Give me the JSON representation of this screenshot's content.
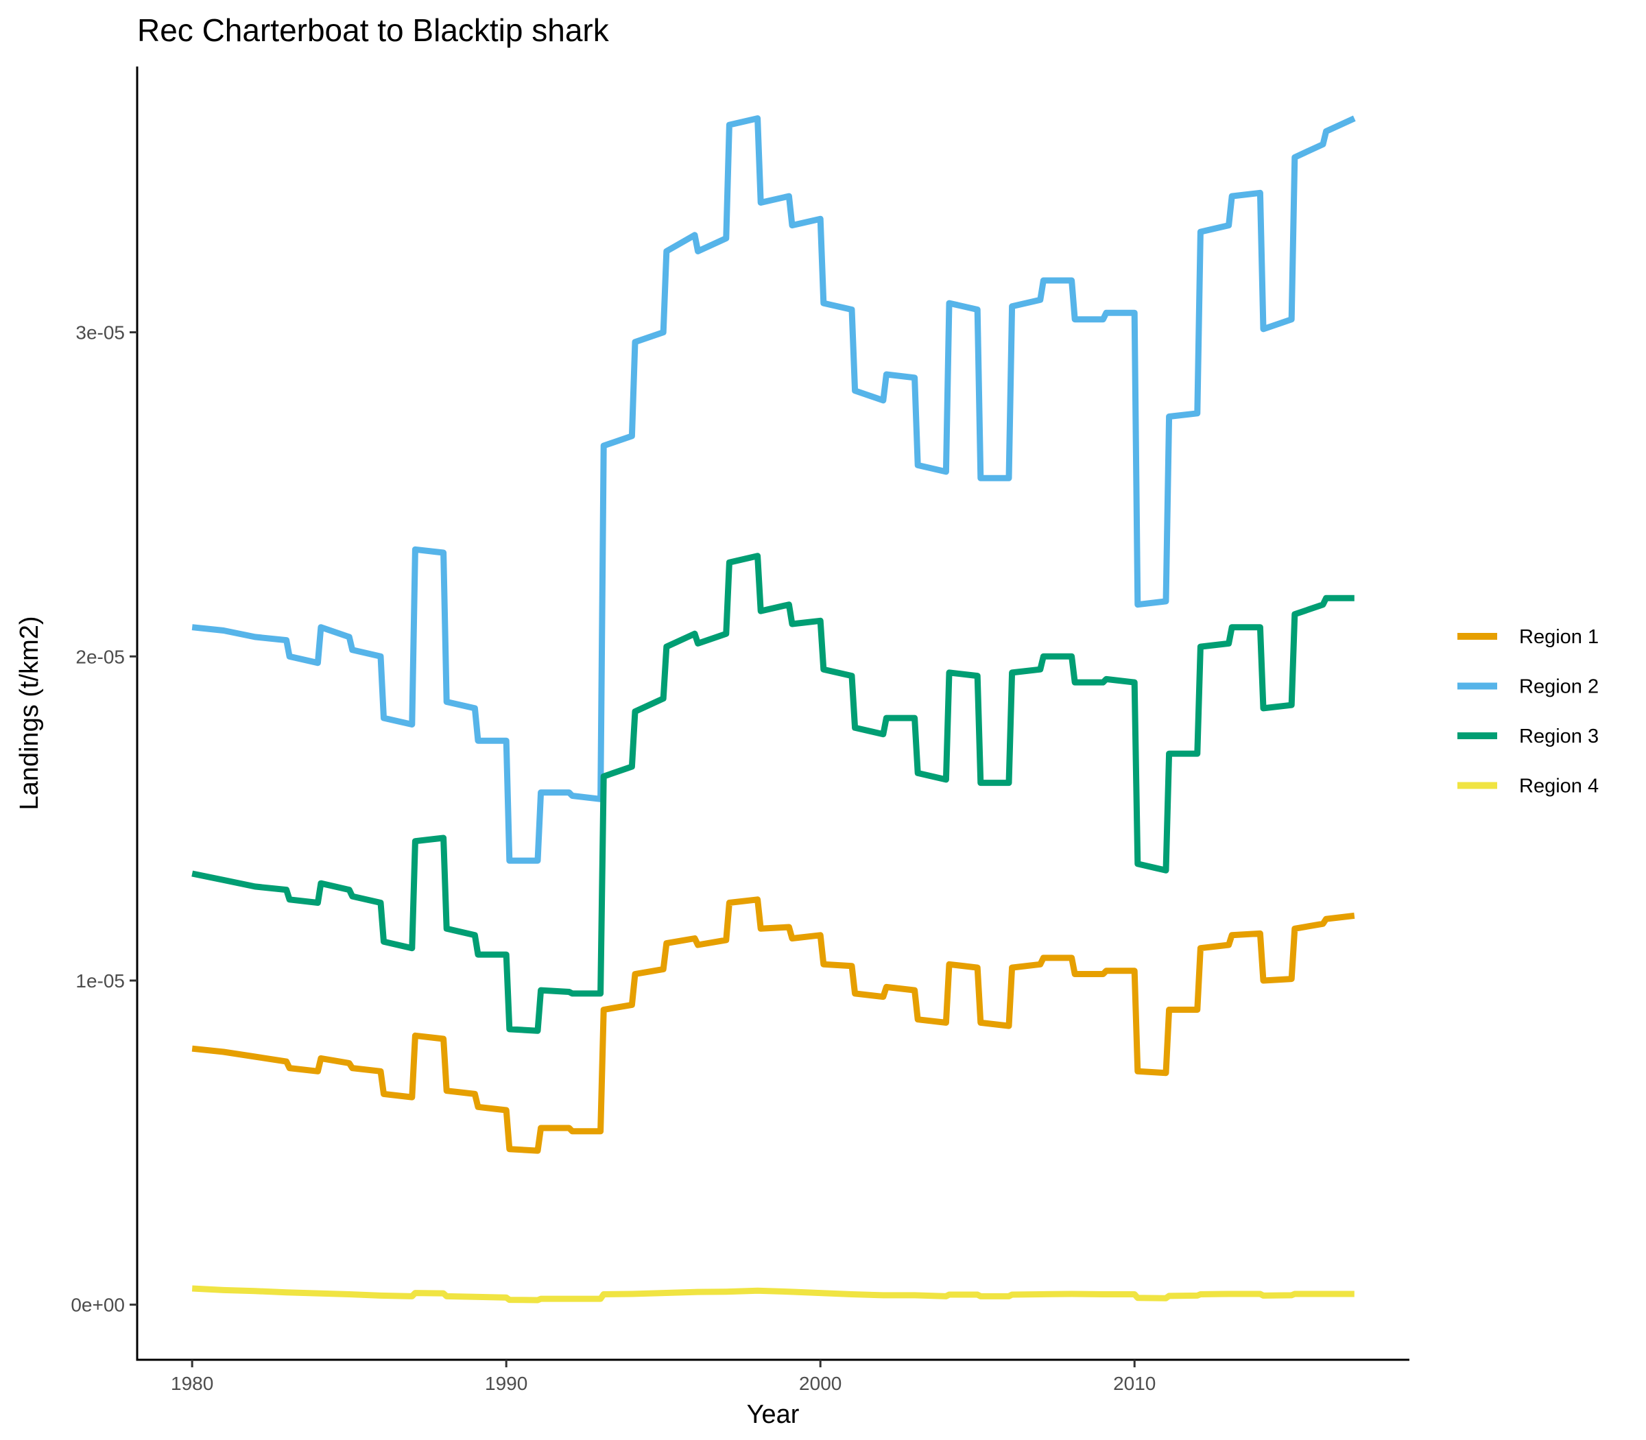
{
  "chart_data": {
    "type": "line",
    "title": "Rec Charterboat to Blacktip shark",
    "xlabel": "Year",
    "ylabel": "Landings (t/km2)",
    "xlim": [
      1978.25,
      2018.75
    ],
    "ylim": [
      -1.7e-06,
      3.82e-05
    ],
    "x_ticks": [
      1980,
      1990,
      2000,
      2010
    ],
    "x_tick_labels": [
      "1980",
      "1990",
      "2000",
      "2010"
    ],
    "y_ticks": [
      0,
      1e-05,
      2e-05,
      3e-05
    ],
    "y_tick_labels": [
      "0e+00",
      "1e-05",
      "2e-05",
      "3e-05"
    ],
    "grid": false,
    "legend_position": "right",
    "series": [
      {
        "name": "Region 1",
        "color": "#E69F00",
        "points": [
          [
            1980.0,
            7.9e-06
          ],
          [
            1981.0,
            7.8e-06
          ],
          [
            1982.0,
            7.65e-06
          ],
          [
            1983.0,
            7.5e-06
          ],
          [
            1983.1,
            7.3e-06
          ],
          [
            1984.0,
            7.2e-06
          ],
          [
            1984.1,
            7.6e-06
          ],
          [
            1985.0,
            7.45e-06
          ],
          [
            1985.1,
            7.3e-06
          ],
          [
            1986.0,
            7.2e-06
          ],
          [
            1986.1,
            6.5e-06
          ],
          [
            1987.0,
            6.4e-06
          ],
          [
            1987.1,
            8.3e-06
          ],
          [
            1988.0,
            8.2e-06
          ],
          [
            1988.1,
            6.6e-06
          ],
          [
            1989.0,
            6.5e-06
          ],
          [
            1989.1,
            6.1e-06
          ],
          [
            1990.0,
            6e-06
          ],
          [
            1990.1,
            4.8e-06
          ],
          [
            1991.0,
            4.75e-06
          ],
          [
            1991.1,
            5.45e-06
          ],
          [
            1992.0,
            5.45e-06
          ],
          [
            1992.1,
            5.35e-06
          ],
          [
            1993.0,
            5.35e-06
          ],
          [
            1993.1,
            9.1e-06
          ],
          [
            1994.0,
            9.25e-06
          ],
          [
            1994.1,
            1.02e-05
          ],
          [
            1995.0,
            1.035e-05
          ],
          [
            1995.1,
            1.115e-05
          ],
          [
            1996.0,
            1.13e-05
          ],
          [
            1996.1,
            1.11e-05
          ],
          [
            1997.0,
            1.125e-05
          ],
          [
            1997.1,
            1.24e-05
          ],
          [
            1998.0,
            1.25e-05
          ],
          [
            1998.1,
            1.16e-05
          ],
          [
            1999.0,
            1.165e-05
          ],
          [
            1999.1,
            1.13e-05
          ],
          [
            2000.0,
            1.14e-05
          ],
          [
            2000.1,
            1.05e-05
          ],
          [
            2001.0,
            1.045e-05
          ],
          [
            2001.1,
            9.6e-06
          ],
          [
            2002.0,
            9.5e-06
          ],
          [
            2002.1,
            9.8e-06
          ],
          [
            2003.0,
            9.7e-06
          ],
          [
            2003.1,
            8.8e-06
          ],
          [
            2004.0,
            8.7e-06
          ],
          [
            2004.1,
            1.05e-05
          ],
          [
            2005.0,
            1.04e-05
          ],
          [
            2005.1,
            8.7e-06
          ],
          [
            2006.0,
            8.6e-06
          ],
          [
            2006.1,
            1.04e-05
          ],
          [
            2007.0,
            1.05e-05
          ],
          [
            2007.1,
            1.07e-05
          ],
          [
            2008.0,
            1.07e-05
          ],
          [
            2008.1,
            1.02e-05
          ],
          [
            2009.0,
            1.02e-05
          ],
          [
            2009.1,
            1.03e-05
          ],
          [
            2010.0,
            1.03e-05
          ],
          [
            2010.1,
            7.2e-06
          ],
          [
            2011.0,
            7.15e-06
          ],
          [
            2011.1,
            9.1e-06
          ],
          [
            2012.0,
            9.1e-06
          ],
          [
            2012.1,
            1.1e-05
          ],
          [
            2013.0,
            1.11e-05
          ],
          [
            2013.1,
            1.14e-05
          ],
          [
            2014.0,
            1.145e-05
          ],
          [
            2014.1,
            1e-05
          ],
          [
            2015.0,
            1.005e-05
          ],
          [
            2015.1,
            1.16e-05
          ],
          [
            2016.0,
            1.175e-05
          ],
          [
            2016.1,
            1.19e-05
          ],
          [
            2017.0,
            1.2e-05
          ]
        ]
      },
      {
        "name": "Region 2",
        "color": "#56B4E9",
        "points": [
          [
            1980.0,
            2.09e-05
          ],
          [
            1981.0,
            2.08e-05
          ],
          [
            1982.0,
            2.06e-05
          ],
          [
            1983.0,
            2.05e-05
          ],
          [
            1983.1,
            2e-05
          ],
          [
            1984.0,
            1.98e-05
          ],
          [
            1984.1,
            2.09e-05
          ],
          [
            1985.0,
            2.06e-05
          ],
          [
            1985.1,
            2.02e-05
          ],
          [
            1986.0,
            2e-05
          ],
          [
            1986.1,
            1.81e-05
          ],
          [
            1987.0,
            1.79e-05
          ],
          [
            1987.1,
            2.33e-05
          ],
          [
            1988.0,
            2.32e-05
          ],
          [
            1988.1,
            1.86e-05
          ],
          [
            1989.0,
            1.84e-05
          ],
          [
            1989.1,
            1.74e-05
          ],
          [
            1990.0,
            1.74e-05
          ],
          [
            1990.1,
            1.37e-05
          ],
          [
            1991.0,
            1.37e-05
          ],
          [
            1991.1,
            1.58e-05
          ],
          [
            1992.0,
            1.58e-05
          ],
          [
            1992.1,
            1.57e-05
          ],
          [
            1993.0,
            1.56e-05
          ],
          [
            1993.1,
            2.65e-05
          ],
          [
            1994.0,
            2.68e-05
          ],
          [
            1994.1,
            2.97e-05
          ],
          [
            1995.0,
            3e-05
          ],
          [
            1995.1,
            3.25e-05
          ],
          [
            1996.0,
            3.3e-05
          ],
          [
            1996.1,
            3.25e-05
          ],
          [
            1997.0,
            3.29e-05
          ],
          [
            1997.1,
            3.64e-05
          ],
          [
            1998.0,
            3.66e-05
          ],
          [
            1998.1,
            3.4e-05
          ],
          [
            1999.0,
            3.42e-05
          ],
          [
            1999.1,
            3.33e-05
          ],
          [
            2000.0,
            3.35e-05
          ],
          [
            2000.1,
            3.09e-05
          ],
          [
            2001.0,
            3.07e-05
          ],
          [
            2001.1,
            2.82e-05
          ],
          [
            2002.0,
            2.79e-05
          ],
          [
            2002.1,
            2.87e-05
          ],
          [
            2003.0,
            2.86e-05
          ],
          [
            2003.1,
            2.59e-05
          ],
          [
            2004.0,
            2.57e-05
          ],
          [
            2004.1,
            3.09e-05
          ],
          [
            2005.0,
            3.07e-05
          ],
          [
            2005.1,
            2.55e-05
          ],
          [
            2006.0,
            2.55e-05
          ],
          [
            2006.1,
            3.08e-05
          ],
          [
            2007.0,
            3.1e-05
          ],
          [
            2007.1,
            3.16e-05
          ],
          [
            2008.0,
            3.16e-05
          ],
          [
            2008.1,
            3.04e-05
          ],
          [
            2009.0,
            3.04e-05
          ],
          [
            2009.1,
            3.06e-05
          ],
          [
            2010.0,
            3.06e-05
          ],
          [
            2010.1,
            2.16e-05
          ],
          [
            2011.0,
            2.17e-05
          ],
          [
            2011.1,
            2.74e-05
          ],
          [
            2012.0,
            2.75e-05
          ],
          [
            2012.1,
            3.31e-05
          ],
          [
            2013.0,
            3.33e-05
          ],
          [
            2013.1,
            3.42e-05
          ],
          [
            2014.0,
            3.43e-05
          ],
          [
            2014.1,
            3.01e-05
          ],
          [
            2015.0,
            3.04e-05
          ],
          [
            2015.1,
            3.54e-05
          ],
          [
            2016.0,
            3.58e-05
          ],
          [
            2016.1,
            3.62e-05
          ],
          [
            2017.0,
            3.66e-05
          ]
        ]
      },
      {
        "name": "Region 3",
        "color": "#009E73",
        "points": [
          [
            1980.0,
            1.33e-05
          ],
          [
            1981.0,
            1.31e-05
          ],
          [
            1982.0,
            1.29e-05
          ],
          [
            1983.0,
            1.28e-05
          ],
          [
            1983.1,
            1.25e-05
          ],
          [
            1984.0,
            1.24e-05
          ],
          [
            1984.1,
            1.3e-05
          ],
          [
            1985.0,
            1.28e-05
          ],
          [
            1985.1,
            1.26e-05
          ],
          [
            1986.0,
            1.24e-05
          ],
          [
            1986.1,
            1.12e-05
          ],
          [
            1987.0,
            1.1e-05
          ],
          [
            1987.1,
            1.43e-05
          ],
          [
            1988.0,
            1.44e-05
          ],
          [
            1988.1,
            1.16e-05
          ],
          [
            1989.0,
            1.14e-05
          ],
          [
            1989.1,
            1.08e-05
          ],
          [
            1990.0,
            1.08e-05
          ],
          [
            1990.1,
            8.5e-06
          ],
          [
            1991.0,
            8.45e-06
          ],
          [
            1991.1,
            9.7e-06
          ],
          [
            1992.0,
            9.65e-06
          ],
          [
            1992.1,
            9.6e-06
          ],
          [
            1993.0,
            9.6e-06
          ],
          [
            1993.1,
            1.63e-05
          ],
          [
            1994.0,
            1.66e-05
          ],
          [
            1994.1,
            1.83e-05
          ],
          [
            1995.0,
            1.87e-05
          ],
          [
            1995.1,
            2.03e-05
          ],
          [
            1996.0,
            2.07e-05
          ],
          [
            1996.1,
            2.04e-05
          ],
          [
            1997.0,
            2.07e-05
          ],
          [
            1997.1,
            2.29e-05
          ],
          [
            1998.0,
            2.31e-05
          ],
          [
            1998.1,
            2.14e-05
          ],
          [
            1999.0,
            2.16e-05
          ],
          [
            1999.1,
            2.1e-05
          ],
          [
            2000.0,
            2.11e-05
          ],
          [
            2000.1,
            1.96e-05
          ],
          [
            2001.0,
            1.94e-05
          ],
          [
            2001.1,
            1.78e-05
          ],
          [
            2002.0,
            1.76e-05
          ],
          [
            2002.1,
            1.81e-05
          ],
          [
            2003.0,
            1.81e-05
          ],
          [
            2003.1,
            1.64e-05
          ],
          [
            2004.0,
            1.62e-05
          ],
          [
            2004.1,
            1.95e-05
          ],
          [
            2005.0,
            1.94e-05
          ],
          [
            2005.1,
            1.61e-05
          ],
          [
            2006.0,
            1.61e-05
          ],
          [
            2006.1,
            1.95e-05
          ],
          [
            2007.0,
            1.96e-05
          ],
          [
            2007.1,
            2e-05
          ],
          [
            2008.0,
            2e-05
          ],
          [
            2008.1,
            1.92e-05
          ],
          [
            2009.0,
            1.92e-05
          ],
          [
            2009.1,
            1.93e-05
          ],
          [
            2010.0,
            1.92e-05
          ],
          [
            2010.1,
            1.36e-05
          ],
          [
            2011.0,
            1.34e-05
          ],
          [
            2011.1,
            1.7e-05
          ],
          [
            2012.0,
            1.7e-05
          ],
          [
            2012.1,
            2.03e-05
          ],
          [
            2013.0,
            2.04e-05
          ],
          [
            2013.1,
            2.09e-05
          ],
          [
            2014.0,
            2.09e-05
          ],
          [
            2014.1,
            1.84e-05
          ],
          [
            2015.0,
            1.85e-05
          ],
          [
            2015.1,
            2.13e-05
          ],
          [
            2016.0,
            2.16e-05
          ],
          [
            2016.1,
            2.18e-05
          ],
          [
            2017.0,
            2.18e-05
          ]
        ]
      },
      {
        "name": "Region 4",
        "color": "#F0E442",
        "points": [
          [
            1980.0,
            5e-07
          ],
          [
            1981.0,
            4.5e-07
          ],
          [
            1982.0,
            4.2e-07
          ],
          [
            1983.0,
            3.8e-07
          ],
          [
            1984.0,
            3.5e-07
          ],
          [
            1985.0,
            3.2e-07
          ],
          [
            1986.0,
            2.8e-07
          ],
          [
            1987.0,
            2.6e-07
          ],
          [
            1987.1,
            3.6e-07
          ],
          [
            1988.0,
            3.5e-07
          ],
          [
            1988.1,
            2.6e-07
          ],
          [
            1989.0,
            2.4e-07
          ],
          [
            1990.0,
            2.2e-07
          ],
          [
            1990.1,
            1.5e-07
          ],
          [
            1991.0,
            1.4e-07
          ],
          [
            1991.1,
            1.8e-07
          ],
          [
            1993.0,
            1.8e-07
          ],
          [
            1993.1,
            3.2e-07
          ],
          [
            1994.0,
            3.3e-07
          ],
          [
            1995.0,
            3.6e-07
          ],
          [
            1996.0,
            3.9e-07
          ],
          [
            1997.0,
            4e-07
          ],
          [
            1998.0,
            4.3e-07
          ],
          [
            1999.0,
            4e-07
          ],
          [
            2000.0,
            3.6e-07
          ],
          [
            2001.0,
            3.2e-07
          ],
          [
            2002.0,
            2.9e-07
          ],
          [
            2003.0,
            2.9e-07
          ],
          [
            2004.0,
            2.6e-07
          ],
          [
            2004.1,
            3.1e-07
          ],
          [
            2005.0,
            3.1e-07
          ],
          [
            2005.1,
            2.6e-07
          ],
          [
            2006.0,
            2.6e-07
          ],
          [
            2006.1,
            3.1e-07
          ],
          [
            2007.0,
            3.2e-07
          ],
          [
            2008.0,
            3.3e-07
          ],
          [
            2009.0,
            3.2e-07
          ],
          [
            2010.0,
            3.2e-07
          ],
          [
            2010.1,
            2.1e-07
          ],
          [
            2011.0,
            2e-07
          ],
          [
            2011.1,
            2.7e-07
          ],
          [
            2012.0,
            2.8e-07
          ],
          [
            2012.1,
            3.2e-07
          ],
          [
            2013.0,
            3.3e-07
          ],
          [
            2014.0,
            3.3e-07
          ],
          [
            2014.1,
            2.8e-07
          ],
          [
            2015.0,
            2.9e-07
          ],
          [
            2015.1,
            3.3e-07
          ],
          [
            2016.0,
            3.3e-07
          ],
          [
            2017.0,
            3.3e-07
          ]
        ]
      }
    ]
  }
}
